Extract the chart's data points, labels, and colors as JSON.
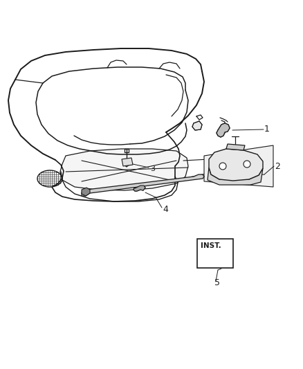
{
  "bg_color": "#ffffff",
  "line_color": "#1a1a1a",
  "label_1": "1",
  "label_2": "2",
  "label_3": "3",
  "label_4": "4",
  "label_5": "5",
  "inst_text": "INST.",
  "figsize": [
    4.38,
    5.33
  ],
  "dpi": 100
}
